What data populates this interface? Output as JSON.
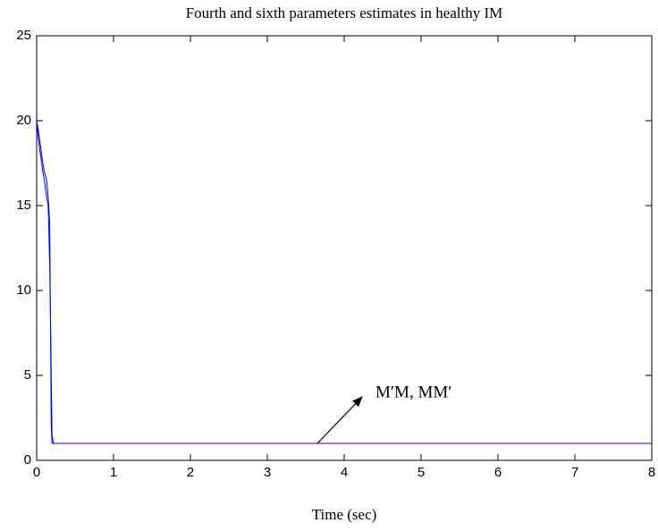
{
  "chart_data": {
    "type": "line",
    "title": "Fourth and sixth parameters estimates in healthy IM",
    "x_label": "Time (sec)",
    "annotation": "M′M, MM′",
    "x": [
      0,
      0.02,
      0.05,
      0.08,
      0.1,
      0.13,
      0.15,
      0.17,
      0.19,
      0.2,
      0.22,
      0.3,
      1,
      2,
      3,
      4,
      5,
      6,
      7,
      8
    ],
    "series": [
      {
        "color": "#0000ff",
        "values": [
          20,
          19.5,
          18.5,
          17.5,
          17,
          16.5,
          15.5,
          14,
          2,
          1,
          1,
          1,
          1,
          1,
          1,
          1,
          1,
          1,
          1,
          1
        ]
      },
      {
        "color": "#0000ff",
        "values": [
          20,
          19,
          18,
          17,
          16.5,
          15.5,
          15,
          11.5,
          5,
          1.5,
          1,
          1,
          1,
          1,
          1,
          1,
          1,
          1,
          1,
          1
        ]
      }
    ],
    "xlim": [
      0,
      8
    ],
    "xticks": [
      0,
      1,
      2,
      3,
      4,
      5,
      6,
      7,
      8
    ],
    "ylim": [
      0,
      25
    ],
    "yticks": [
      0,
      5,
      10,
      15,
      20,
      25
    ],
    "grid": false
  }
}
